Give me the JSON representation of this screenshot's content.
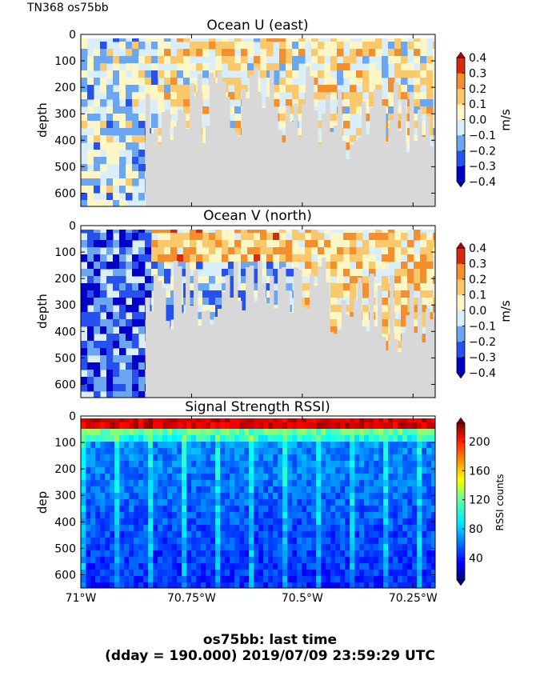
{
  "header_label": "TN368 os75bb",
  "footer": {
    "line1": "os75bb: last time",
    "line2": "(dday = 190.000) 2019/07/09 23:59:29 UTC"
  },
  "chart_data": [
    {
      "type": "heatmap",
      "title": "Ocean U (east)",
      "ylabel": "depth",
      "xlim": [
        -71.0,
        -70.2
      ],
      "ylim": [
        650,
        0
      ],
      "yticks": [
        0,
        100,
        200,
        300,
        400,
        500,
        600
      ],
      "colorbar": {
        "label": "m/s",
        "range": [
          -0.4,
          0.4
        ],
        "ticks": [
          "0.4",
          "0.3",
          "0.2",
          "0.1",
          "0.0",
          "−0.1",
          "−0.2",
          "−0.3",
          "−0.4"
        ],
        "colors": [
          "#0000c8",
          "#2850ee",
          "#6aa6f2",
          "#d8eefa",
          "#fff6c6",
          "#fcc86c",
          "#f58e2c",
          "#d82a0e"
        ]
      },
      "blanked_color": "#d8d8d8",
      "grid": false
    },
    {
      "type": "heatmap",
      "title": "Ocean V (north)",
      "ylabel": "depth",
      "xlim": [
        -71.0,
        -70.2
      ],
      "ylim": [
        650,
        0
      ],
      "yticks": [
        0,
        100,
        200,
        300,
        400,
        500,
        600
      ],
      "colorbar": {
        "label": "m/s",
        "range": [
          -0.4,
          0.4
        ],
        "ticks": [
          "0.4",
          "0.3",
          "0.2",
          "0.1",
          "0.0",
          "−0.1",
          "−0.2",
          "−0.3",
          "−0.4"
        ],
        "colors": [
          "#0000c8",
          "#2850ee",
          "#6aa6f2",
          "#d8eefa",
          "#fff6c6",
          "#fcc86c",
          "#f58e2c",
          "#d82a0e"
        ]
      },
      "blanked_color": "#d8d8d8",
      "grid": false
    },
    {
      "type": "heatmap",
      "title": "Signal Strength RSSI)",
      "ylabel": "dep",
      "xlim": [
        -71.0,
        -70.2
      ],
      "ylim": [
        650,
        0
      ],
      "yticks": [
        0,
        100,
        200,
        300,
        400,
        500,
        600
      ],
      "xticks": [
        {
          "value": -71.0,
          "label": "71°W"
        },
        {
          "value": -70.75,
          "label": "70.75°W"
        },
        {
          "value": -70.5,
          "label": "70.5°W"
        },
        {
          "value": -70.25,
          "label": "70.25°W"
        }
      ],
      "colorbar": {
        "label": "RSSI counts",
        "range": [
          10,
          225
        ],
        "ticks": [
          "200",
          "160",
          "120",
          "80",
          "40"
        ],
        "colormap": "jet"
      },
      "grid": false
    }
  ]
}
